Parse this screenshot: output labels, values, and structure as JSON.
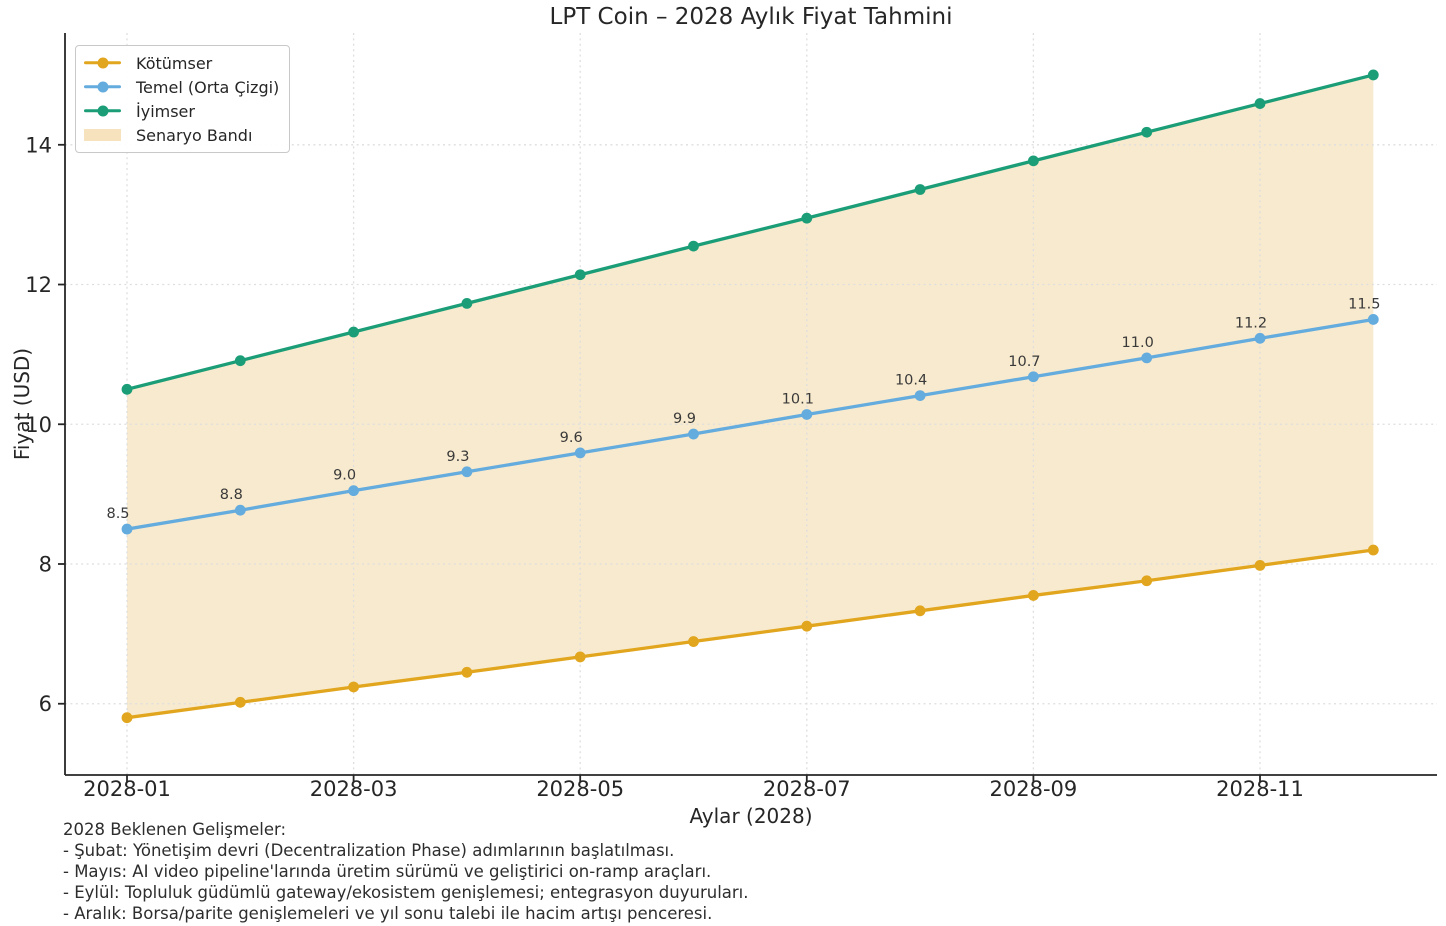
{
  "title": "LPT Coin – 2028 Aylık Fiyat Tahmini",
  "axes": {
    "xlabel": "Aylar (2028)",
    "ylabel": "Fiyat (USD)"
  },
  "colors": {
    "pessimistic": "#E1A51E",
    "base": "#64ABDE",
    "optimistic": "#1B9E77",
    "band_fill": "rgba(244,221,176,0.62)",
    "grid": "#dedede",
    "spine": "#262626",
    "tick_text": "#262626",
    "point_label_text": "#3a3a3a"
  },
  "legend": {
    "items": [
      {
        "label": "Kötümser",
        "type": "line",
        "color": "#E1A51E"
      },
      {
        "label": "Temel (Orta Çizgi)",
        "type": "line",
        "color": "#64ABDE"
      },
      {
        "label": "İyimser",
        "type": "line",
        "color": "#1B9E77"
      },
      {
        "label": "Senaryo Bandı",
        "type": "patch",
        "color": "rgba(244,221,176,0.85)"
      }
    ]
  },
  "chart_data": {
    "type": "line",
    "title": "LPT Coin – 2028 Aylık Fiyat Tahmini",
    "xlabel": "Aylar (2028)",
    "ylabel": "Fiyat (USD)",
    "x_categories": [
      "2028-01",
      "2028-02",
      "2028-03",
      "2028-04",
      "2028-05",
      "2028-06",
      "2028-07",
      "2028-08",
      "2028-09",
      "2028-10",
      "2028-11",
      "2028-12"
    ],
    "x_tick_labels": [
      "2028-01",
      "2028-03",
      "2028-05",
      "2028-07",
      "2028-09",
      "2028-11"
    ],
    "x_tick_indices": [
      0,
      2,
      4,
      6,
      8,
      10
    ],
    "y_ticks": [
      6,
      8,
      10,
      12,
      14
    ],
    "ylim": [
      4.98,
      15.6
    ],
    "grid": true,
    "legend_position": "upper-left",
    "series": [
      {
        "name": "Kötümser",
        "color": "#E1A51E",
        "values": [
          5.8,
          6.02,
          6.24,
          6.45,
          6.67,
          6.89,
          7.11,
          7.33,
          7.55,
          7.76,
          7.98,
          8.2
        ]
      },
      {
        "name": "Temel (Orta Çizgi)",
        "color": "#64ABDE",
        "values": [
          8.5,
          8.77,
          9.05,
          9.32,
          9.59,
          9.86,
          10.14,
          10.41,
          10.68,
          10.95,
          11.23,
          11.5
        ],
        "point_labels": [
          "8.5",
          "8.8",
          "9.0",
          "9.3",
          "9.6",
          "9.9",
          "10.1",
          "10.4",
          "10.7",
          "11.0",
          "11.2",
          "11.5"
        ]
      },
      {
        "name": "İyimser",
        "color": "#1B9E77",
        "values": [
          10.5,
          10.91,
          11.32,
          11.73,
          12.14,
          12.55,
          12.95,
          13.36,
          13.77,
          14.18,
          14.59,
          15.0
        ]
      }
    ],
    "band": {
      "name": "Senaryo Bandı",
      "lower_series": "Kötümser",
      "upper_series": "İyimser",
      "fill": "rgba(244,221,176,0.62)"
    }
  },
  "footer": {
    "lines": [
      "2028 Beklenen Gelişmeler:",
      "- Şubat: Yönetişim devri (Decentralization Phase) adımlarının başlatılması.",
      "- Mayıs: AI video pipeline'larında üretim sürümü ve geliştirici on-ramp araçları.",
      "- Eylül: Topluluk güdümlü gateway/ekosistem genişlemesi; entegrasyon duyuruları.",
      "- Aralık: Borsa/parite genişlemeleri ve yıl sonu talebi ile hacim artışı penceresi."
    ]
  }
}
